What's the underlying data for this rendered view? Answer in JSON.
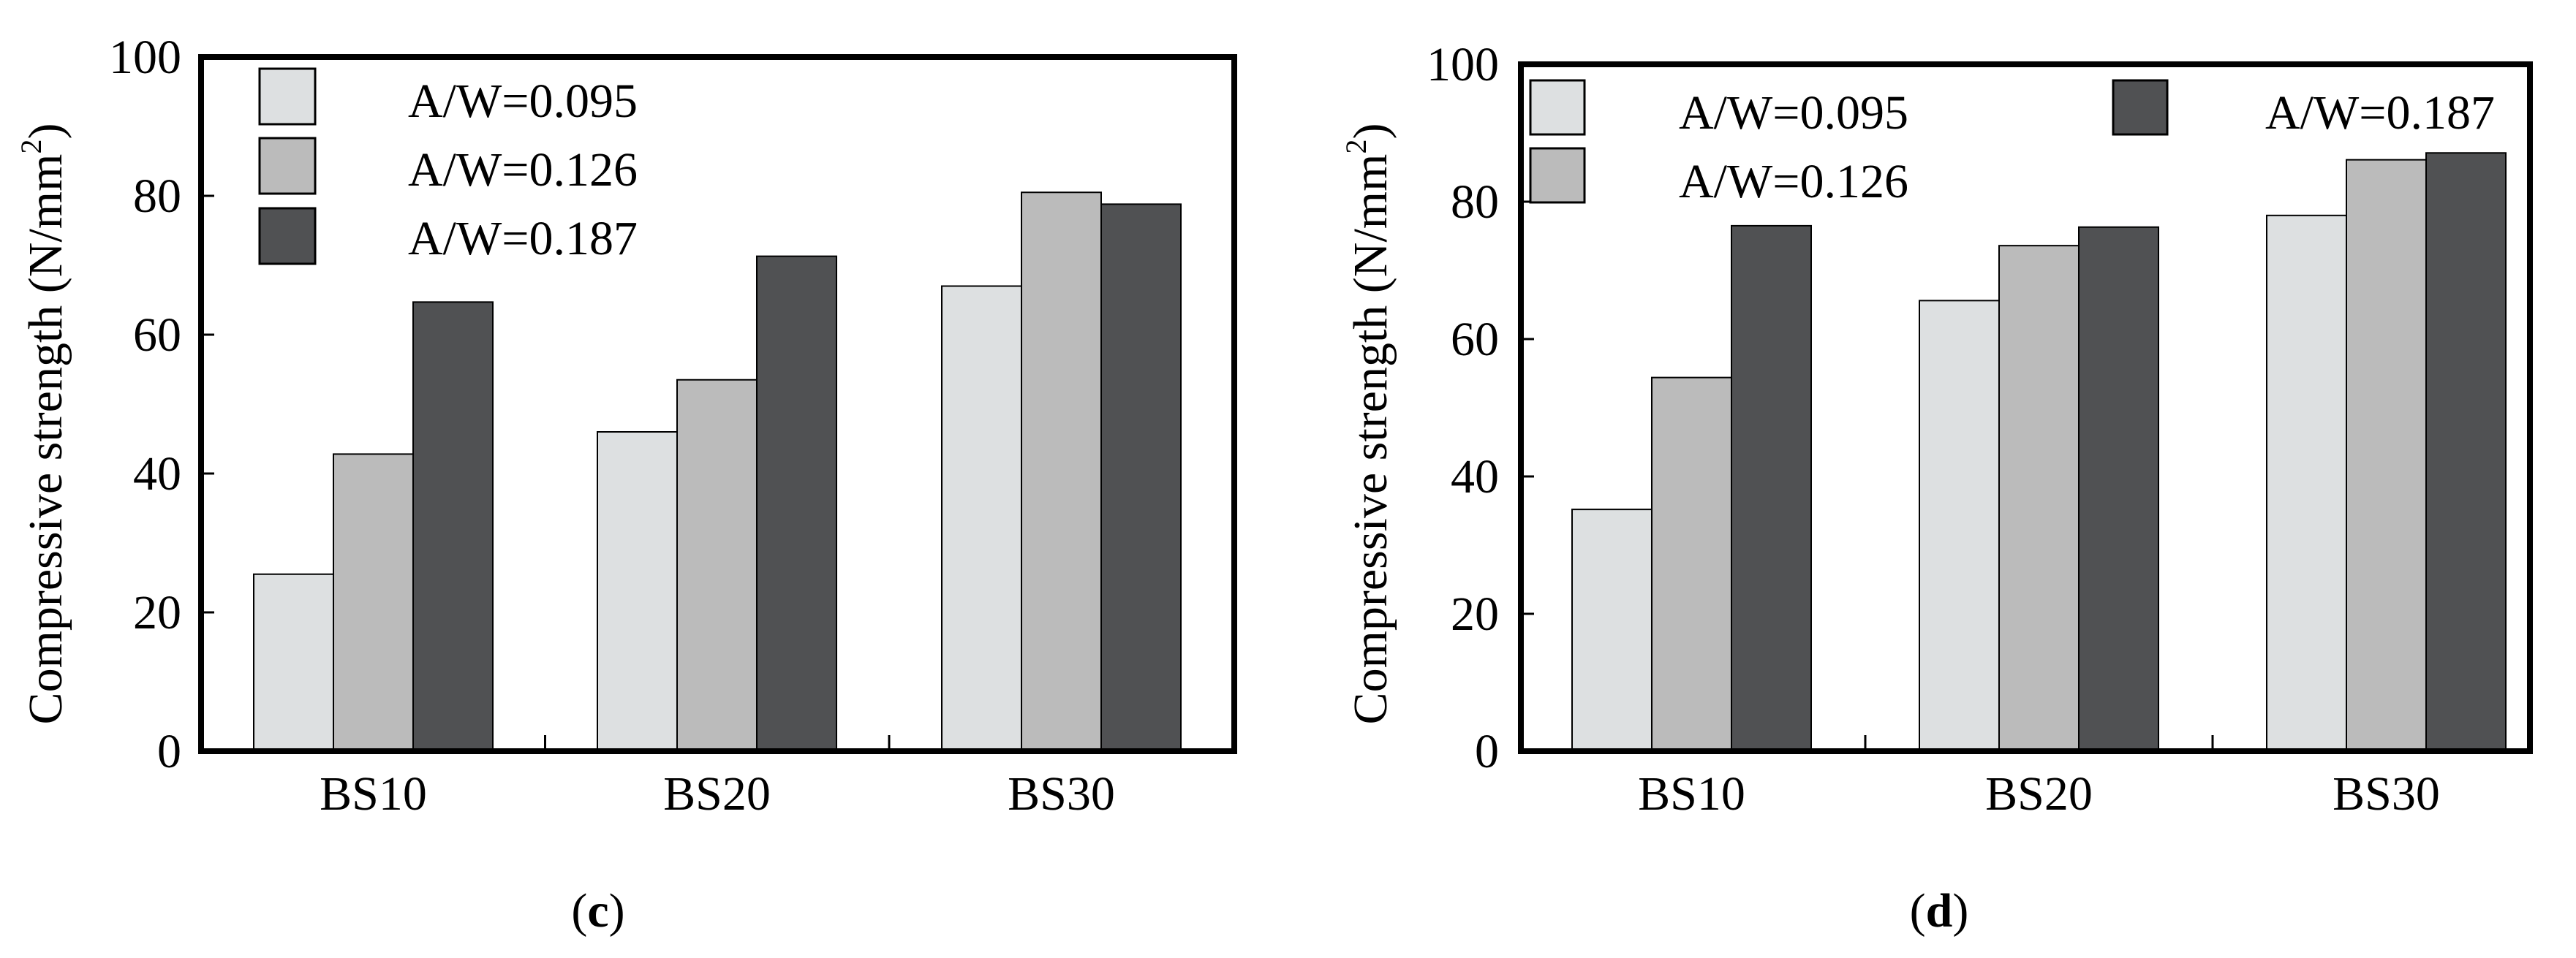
{
  "chart_data": [
    {
      "type": "bar",
      "panel_label": "c",
      "ylabel": "Compressive strength (N/mm",
      "ylabel_sup": "2",
      "ylabel_close": ")",
      "ylim": [
        0,
        100
      ],
      "yticks": [
        0,
        20,
        40,
        60,
        80,
        100
      ],
      "categories": [
        "BS10",
        "BS20",
        "BS30"
      ],
      "series": [
        {
          "name": "A/W=0.095",
          "color": "#dde0e1",
          "values": [
            25.5,
            46,
            67
          ]
        },
        {
          "name": "A/W=0.126",
          "color": "#bbbbbb",
          "values": [
            42.8,
            53.5,
            80.5
          ]
        },
        {
          "name": "A/W=0.187",
          "color": "#505153",
          "values": [
            64.7,
            71.3,
            78.8
          ]
        }
      ],
      "legend_position": "top-left"
    },
    {
      "type": "bar",
      "panel_label": "d",
      "ylabel": "Compressive strength (N/mm",
      "ylabel_sup": "2",
      "ylabel_close": ")",
      "ylim": [
        0,
        100
      ],
      "yticks": [
        0,
        20,
        40,
        60,
        80,
        100
      ],
      "categories": [
        "BS10",
        "BS20",
        "BS30"
      ],
      "series": [
        {
          "name": "A/W=0.095",
          "color": "#dde0e1",
          "values": [
            35.2,
            65.6,
            78
          ]
        },
        {
          "name": "A/W=0.126",
          "color": "#bbbbbb",
          "values": [
            54.4,
            73.6,
            86.1
          ]
        },
        {
          "name": "A/W=0.187",
          "color": "#505153",
          "values": [
            76.5,
            76.3,
            87.1
          ]
        }
      ],
      "legend_position": "top"
    }
  ]
}
